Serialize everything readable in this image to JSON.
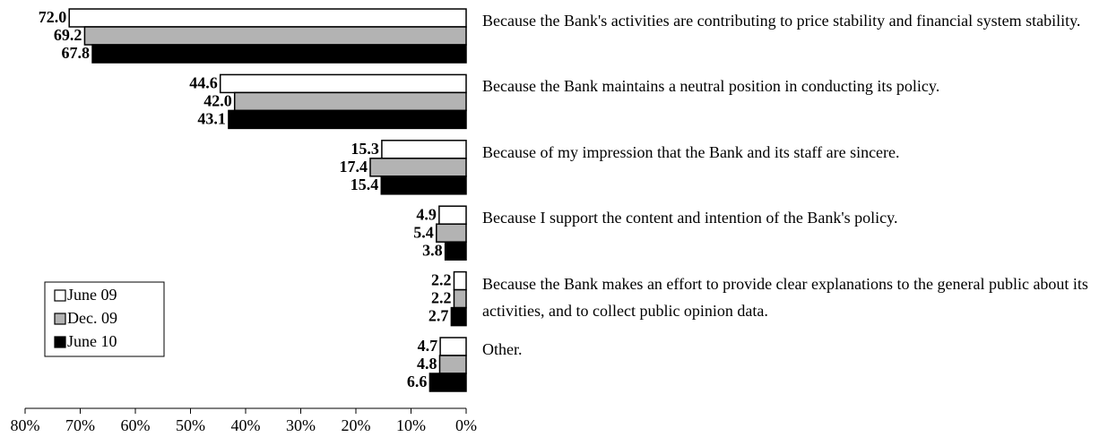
{
  "chart_data": {
    "type": "hbar",
    "categories": [
      "Because the Bank's activities are contributing to price stability and financial system stability.",
      "Because the Bank maintains a neutral position in conducting its policy.",
      "Because of my impression that the Bank and its staff are sincere.",
      "Because I support the content and intention of the Bank's policy.",
      "Because the Bank makes an effort to provide clear explanations to the general public about its activities, and to collect public opinion data.",
      "Other."
    ],
    "series": [
      {
        "name": "June 09",
        "color": "#ffffff",
        "values": [
          72.0,
          44.6,
          15.3,
          4.9,
          2.2,
          4.7
        ],
        "value_labels": [
          "72.0",
          "44.6",
          "15.3",
          "4.9",
          "2.2",
          "4.7"
        ]
      },
      {
        "name": "Dec. 09",
        "color": "#b3b3b3",
        "values": [
          69.2,
          42.0,
          17.4,
          5.4,
          2.2,
          4.8
        ],
        "value_labels": [
          "69.2",
          "42.0",
          "17.4",
          "5.4",
          "2.2",
          "4.8"
        ]
      },
      {
        "name": "June 10",
        "color": "#000000",
        "values": [
          67.8,
          43.1,
          15.4,
          3.8,
          2.7,
          6.6
        ],
        "value_labels": [
          "67.8",
          "43.1",
          "15.4",
          "3.8",
          "2.7",
          "6.6"
        ]
      }
    ],
    "xlim": [
      0,
      80
    ],
    "x_reversed": true,
    "xticks": [
      {
        "value": 80,
        "label": "80%"
      },
      {
        "value": 70,
        "label": "70%"
      },
      {
        "value": 60,
        "label": "60%"
      },
      {
        "value": 50,
        "label": "50%"
      },
      {
        "value": 40,
        "label": "40%"
      },
      {
        "value": 30,
        "label": "30%"
      },
      {
        "value": 20,
        "label": "20%"
      },
      {
        "value": 10,
        "label": "10%"
      },
      {
        "value": 0,
        "label": "0%"
      }
    ],
    "legend": "left"
  }
}
